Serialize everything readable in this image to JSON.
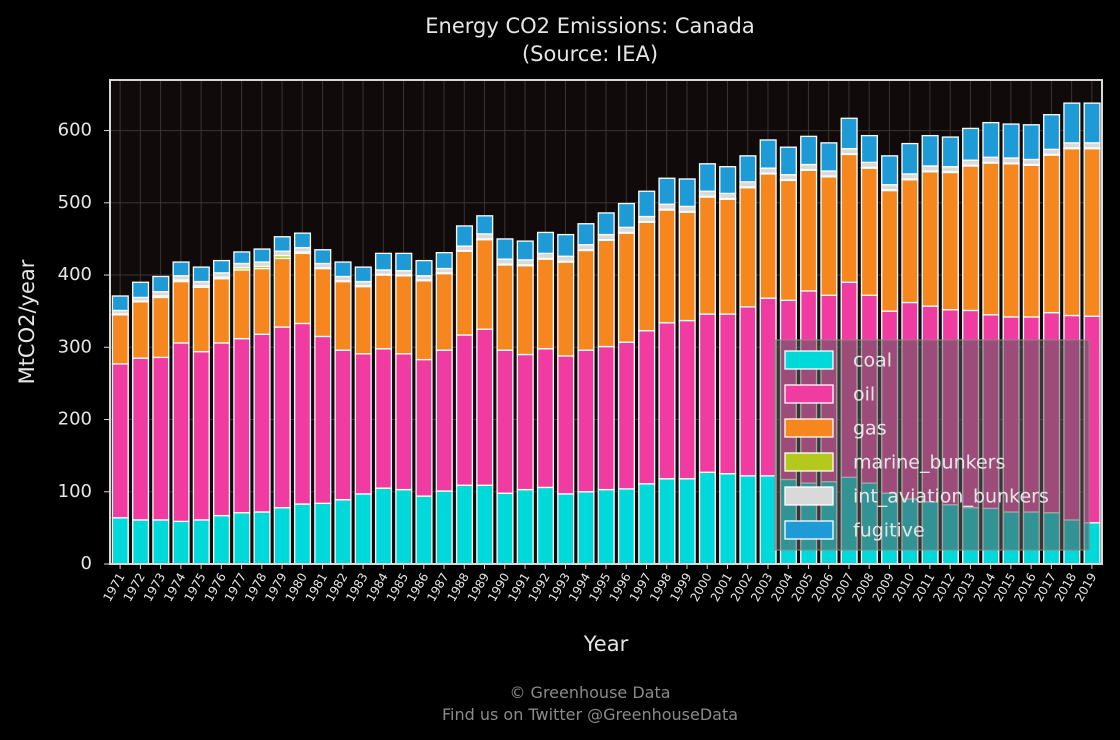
{
  "chart_data": {
    "type": "bar",
    "stacked": true,
    "title": "Energy CO2 Emissions: Canada",
    "subtitle": "(Source: IEA)",
    "xlabel": "Year",
    "ylabel": "MtCO2/year",
    "ylim": [
      0,
      670
    ],
    "yticks": [
      0,
      100,
      200,
      300,
      400,
      500,
      600
    ],
    "grid": true,
    "legend_position": "lower-right",
    "categories": [
      "1971",
      "1972",
      "1973",
      "1974",
      "1975",
      "1976",
      "1977",
      "1978",
      "1979",
      "1980",
      "1981",
      "1982",
      "1983",
      "1984",
      "1985",
      "1986",
      "1987",
      "1988",
      "1989",
      "1990",
      "1991",
      "1992",
      "1993",
      "1994",
      "1995",
      "1996",
      "1997",
      "1998",
      "1999",
      "2000",
      "2001",
      "2002",
      "2003",
      "2004",
      "2005",
      "2006",
      "2007",
      "2008",
      "2009",
      "2010",
      "2011",
      "2012",
      "2013",
      "2014",
      "2015",
      "2016",
      "2017",
      "2018",
      "2019"
    ],
    "series": [
      {
        "name": "coal",
        "color": "#00d9d9",
        "values": [
          64,
          61,
          61,
          59,
          61,
          67,
          71,
          72,
          78,
          83,
          84,
          89,
          97,
          105,
          103,
          94,
          101,
          109,
          109,
          98,
          103,
          106,
          97,
          100,
          103,
          104,
          111,
          118,
          118,
          127,
          125,
          122,
          122,
          117,
          112,
          114,
          120,
          112,
          98,
          90,
          86,
          82,
          78,
          77,
          72,
          72,
          71,
          61,
          57
        ]
      },
      {
        "name": "oil",
        "color": "#f03ca0",
        "values": [
          213,
          224,
          225,
          247,
          233,
          239,
          241,
          246,
          250,
          250,
          231,
          207,
          194,
          193,
          188,
          189,
          195,
          208,
          216,
          198,
          187,
          192,
          191,
          196,
          198,
          203,
          212,
          216,
          219,
          219,
          221,
          234,
          246,
          248,
          266,
          258,
          270,
          260,
          252,
          272,
          271,
          270,
          273,
          268,
          270,
          270,
          277,
          283,
          286
        ]
      },
      {
        "name": "gas",
        "color": "#f5871e",
        "values": [
          68,
          78,
          83,
          85,
          89,
          89,
          95,
          91,
          95,
          97,
          94,
          95,
          93,
          102,
          108,
          109,
          106,
          116,
          124,
          118,
          123,
          124,
          130,
          138,
          147,
          151,
          150,
          156,
          150,
          162,
          159,
          165,
          172,
          166,
          167,
          164,
          177,
          176,
          167,
          170,
          186,
          190,
          200,
          210,
          212,
          210,
          218,
          231,
          232
        ]
      },
      {
        "name": "marine_bunkers",
        "color": "#b4c81e",
        "values": [
          1,
          1,
          2,
          2,
          2,
          2,
          3,
          3,
          4,
          2,
          1,
          1,
          1,
          1,
          1,
          1,
          1,
          1,
          1,
          1,
          1,
          1,
          1,
          1,
          1,
          1,
          1,
          1,
          1,
          1,
          1,
          1,
          1,
          1,
          1,
          1,
          1,
          1,
          1,
          1,
          1,
          1,
          1,
          1,
          1,
          1,
          1,
          1,
          1
        ]
      },
      {
        "name": "int_aviation_bunkers",
        "color": "#d9d9d9",
        "values": [
          5,
          5,
          6,
          6,
          6,
          6,
          6,
          6,
          6,
          6,
          6,
          6,
          6,
          6,
          6,
          6,
          6,
          6,
          7,
          7,
          7,
          7,
          7,
          7,
          7,
          7,
          7,
          7,
          7,
          7,
          7,
          7,
          7,
          7,
          7,
          7,
          7,
          7,
          7,
          7,
          7,
          7,
          7,
          7,
          7,
          7,
          7,
          7,
          7
        ]
      },
      {
        "name": "fugitive",
        "color": "#1e9bd7",
        "values": [
          20,
          21,
          21,
          19,
          20,
          17,
          16,
          18,
          20,
          20,
          19,
          20,
          20,
          23,
          24,
          21,
          22,
          28,
          25,
          28,
          26,
          29,
          30,
          29,
          30,
          33,
          35,
          36,
          38,
          38,
          37,
          36,
          39,
          38,
          39,
          39,
          42,
          37,
          40,
          42,
          42,
          41,
          44,
          48,
          47,
          48,
          48,
          55,
          55
        ]
      }
    ]
  },
  "footer": {
    "line1": "© Greenhouse Data",
    "line2": "Find us on Twitter @GreenhouseData"
  }
}
